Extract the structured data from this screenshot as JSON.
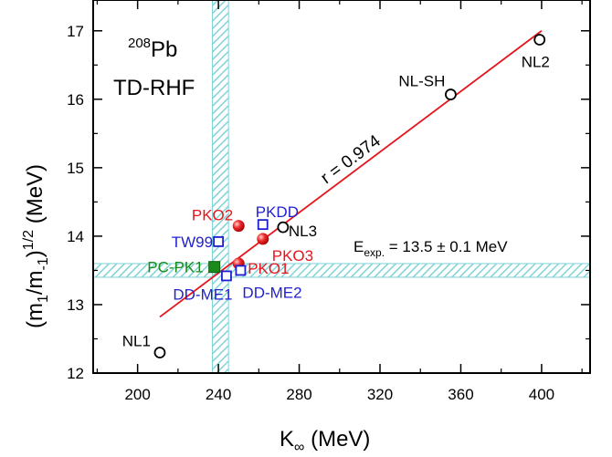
{
  "chart_data": {
    "type": "scatter",
    "title": "",
    "xlabel_main": "K",
    "xlabel_sub": "∞",
    "xlabel_unit": " (MeV)",
    "ylabel_main": "(m",
    "ylabel_s1": "1",
    "ylabel_mid": "/m",
    "ylabel_s2": "-1",
    "ylabel_close": ")",
    "ylabel_sup": "1/2",
    "ylabel_unit": " (MeV)",
    "xlim": [
      178,
      424
    ],
    "ylim": [
      12,
      17.45
    ],
    "x_ticks": [
      200,
      240,
      280,
      320,
      360,
      400
    ],
    "y_ticks": [
      12,
      13,
      14,
      15,
      16,
      17
    ],
    "x_tick_labels": [
      "200",
      "240",
      "280",
      "320",
      "360",
      "400"
    ],
    "y_tick_labels": [
      "12",
      "13",
      "14",
      "15",
      "16",
      "17"
    ],
    "grid": false,
    "annotations": {
      "nucleus_sup": "208",
      "nucleus": "Pb",
      "method": "TD-RHF",
      "correlation": "r = 0.974",
      "exp_prefix": "E",
      "exp_sub": "exp.",
      "exp_value": " = 13.5 ± 0.1 MeV"
    },
    "exp_band": {
      "center": 13.5,
      "halfwidth": 0.1
    },
    "k_band": {
      "min": 237,
      "max": 245
    },
    "fit_line": {
      "x": [
        211,
        400
      ],
      "y": [
        12.82,
        17.0
      ],
      "color": "#e8141c"
    },
    "colors": {
      "band": "#7fd3d6",
      "red": "#e8141c",
      "blue": "#1f1fd0",
      "green": "#1a8a1a",
      "black": "#000000"
    },
    "points": [
      {
        "label": "NL1",
        "x": 211,
        "y": 12.3,
        "group": "nl"
      },
      {
        "label": "NL-SH",
        "x": 355,
        "y": 16.07,
        "group": "nl"
      },
      {
        "label": "NL2",
        "x": 399,
        "y": 16.87,
        "group": "nl"
      },
      {
        "label": "NL3",
        "x": 272,
        "y": 14.13,
        "group": "nl"
      },
      {
        "label": "PKO1",
        "x": 250,
        "y": 13.6,
        "group": "pko"
      },
      {
        "label": "PKO2",
        "x": 250,
        "y": 14.15,
        "group": "pko"
      },
      {
        "label": "PKO3",
        "x": 262,
        "y": 13.96,
        "group": "pko"
      },
      {
        "label": "TW99",
        "x": 240,
        "y": 13.92,
        "group": "dd"
      },
      {
        "label": "PKDD",
        "x": 262,
        "y": 14.17,
        "group": "dd"
      },
      {
        "label": "DD-ME1",
        "x": 244,
        "y": 13.42,
        "group": "dd"
      },
      {
        "label": "DD-ME2",
        "x": 251,
        "y": 13.5,
        "group": "dd"
      },
      {
        "label": "PC-PK1",
        "x": 238,
        "y": 13.55,
        "group": "pc"
      }
    ]
  }
}
